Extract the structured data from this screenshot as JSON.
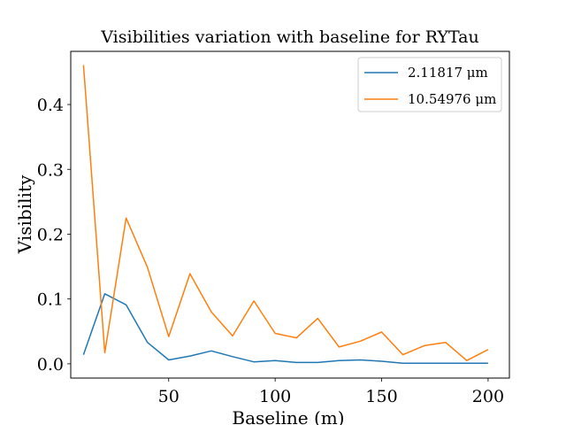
{
  "chart_data": {
    "type": "line",
    "title": "Visibilities variation with baseline for RYTau",
    "xlabel": "Baseline (m)",
    "ylabel": "Visibility",
    "xlim": [
      4,
      210
    ],
    "ylim": [
      -0.022,
      0.482
    ],
    "xticks": [
      50,
      100,
      150,
      200
    ],
    "yticks": [
      0.0,
      0.1,
      0.2,
      0.3,
      0.4
    ],
    "xtick_labels": [
      "50",
      "100",
      "150",
      "200"
    ],
    "ytick_labels": [
      "0.0",
      "0.1",
      "0.2",
      "0.3",
      "0.4"
    ],
    "grid": false,
    "legend_position": "upper right",
    "x": [
      10,
      20,
      30,
      40,
      50,
      60,
      70,
      80,
      90,
      100,
      110,
      120,
      130,
      140,
      150,
      160,
      170,
      180,
      190,
      200
    ],
    "series": [
      {
        "name": "2.11817 μm",
        "color": "#1f77b4",
        "values": [
          0.014,
          0.108,
          0.091,
          0.033,
          0.006,
          0.012,
          0.02,
          0.011,
          0.003,
          0.005,
          0.002,
          0.002,
          0.005,
          0.006,
          0.004,
          0.001,
          0.001,
          0.001,
          0.001,
          0.001
        ]
      },
      {
        "name": "10.54976 μm",
        "color": "#ff7f0e",
        "values": [
          0.461,
          0.017,
          0.225,
          0.149,
          0.042,
          0.139,
          0.08,
          0.043,
          0.097,
          0.047,
          0.04,
          0.07,
          0.026,
          0.035,
          0.049,
          0.014,
          0.028,
          0.033,
          0.005,
          0.022
        ]
      }
    ]
  }
}
